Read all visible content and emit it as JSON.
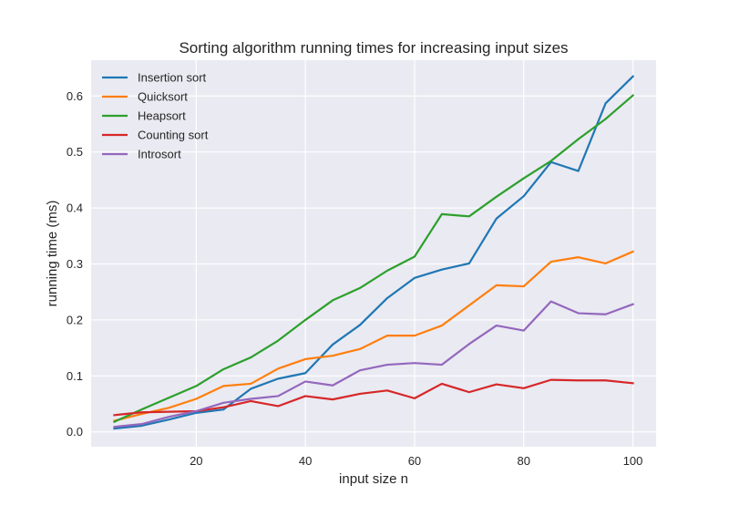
{
  "chart_data": {
    "type": "line",
    "title": "Sorting algorithm running times for increasing input sizes",
    "xlabel": "input size n",
    "ylabel": "running time (ms)",
    "xlim": [
      0.75,
      104.25
    ],
    "ylim": [
      -0.0265,
      0.664
    ],
    "xticks": [
      20,
      40,
      60,
      80,
      100
    ],
    "yticks": [
      0.0,
      0.1,
      0.2,
      0.3,
      0.4,
      0.5,
      0.6
    ],
    "ytick_labels": [
      "0.0",
      "0.1",
      "0.2",
      "0.3",
      "0.4",
      "0.5",
      "0.6"
    ],
    "grid": true,
    "legend_position": "top-left",
    "x": [
      5,
      10,
      15,
      20,
      25,
      30,
      35,
      40,
      45,
      50,
      55,
      60,
      65,
      70,
      75,
      80,
      85,
      90,
      95,
      100
    ],
    "series": [
      {
        "name": "Insertion sort",
        "color": "#1f77b4",
        "values": [
          0.006,
          0.011,
          0.022,
          0.034,
          0.04,
          0.077,
          0.095,
          0.105,
          0.156,
          0.191,
          0.239,
          0.275,
          0.29,
          0.301,
          0.381,
          0.421,
          0.482,
          0.466,
          0.587,
          0.635
        ]
      },
      {
        "name": "Quicksort",
        "color": "#ff7f0e",
        "values": [
          0.02,
          0.032,
          0.043,
          0.059,
          0.082,
          0.086,
          0.113,
          0.13,
          0.136,
          0.148,
          0.172,
          0.172,
          0.19,
          0.226,
          0.262,
          0.26,
          0.304,
          0.312,
          0.301,
          0.322
        ]
      },
      {
        "name": "Heapsort",
        "color": "#2ca02c",
        "values": [
          0.018,
          0.04,
          0.061,
          0.082,
          0.112,
          0.133,
          0.163,
          0.2,
          0.235,
          0.257,
          0.288,
          0.313,
          0.389,
          0.385,
          0.42,
          0.453,
          0.484,
          0.523,
          0.559,
          0.601
        ]
      },
      {
        "name": "Counting sort",
        "color": "#d62728",
        "values": [
          0.03,
          0.035,
          0.036,
          0.037,
          0.044,
          0.055,
          0.046,
          0.064,
          0.058,
          0.068,
          0.074,
          0.06,
          0.086,
          0.071,
          0.085,
          0.078,
          0.093,
          0.092,
          0.092,
          0.087
        ]
      },
      {
        "name": "Introsort",
        "color": "#9467bd",
        "values": [
          0.009,
          0.014,
          0.027,
          0.037,
          0.052,
          0.059,
          0.064,
          0.09,
          0.083,
          0.11,
          0.12,
          0.123,
          0.12,
          0.157,
          0.19,
          0.181,
          0.233,
          0.212,
          0.21,
          0.228
        ]
      }
    ]
  }
}
